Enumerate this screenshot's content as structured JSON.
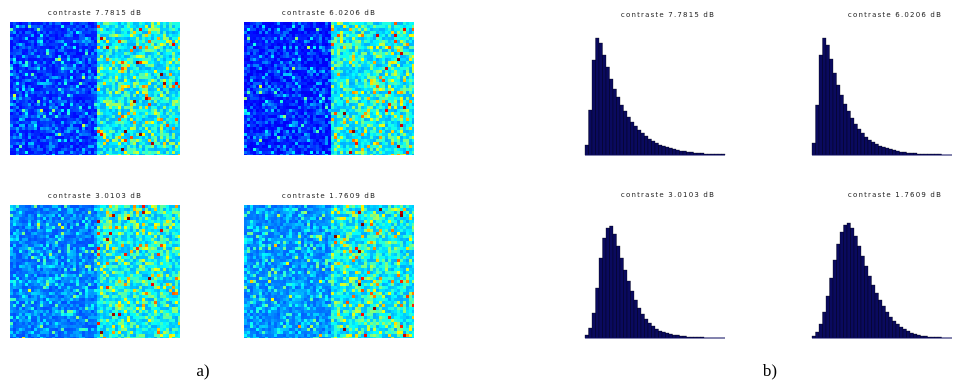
{
  "images": [
    {
      "title": "contraste 7.7815 dB"
    },
    {
      "title": "contraste 6.0206 dB"
    },
    {
      "title": "contraste 3.0103 dB"
    },
    {
      "title": "contraste 1.7609 dB"
    }
  ],
  "histograms": [
    {
      "title": "contraste 7.7815 dB",
      "color": "#0a0a5e",
      "values": [
        10,
        45,
        95,
        117,
        112,
        100,
        88,
        76,
        66,
        58,
        50,
        44,
        38,
        33,
        29,
        25,
        22,
        19,
        16,
        14,
        12,
        10,
        9,
        8,
        7,
        6,
        5,
        4,
        4,
        3,
        3,
        2,
        2,
        2,
        1,
        1,
        1,
        1,
        1,
        1
      ]
    },
    {
      "title": "contraste 6.0206 dB",
      "color": "#0a0a5e",
      "values": [
        12,
        50,
        100,
        117,
        110,
        96,
        82,
        70,
        60,
        51,
        44,
        37,
        31,
        26,
        22,
        18,
        15,
        13,
        11,
        9,
        8,
        7,
        6,
        5,
        4,
        3,
        3,
        2,
        2,
        2,
        1,
        1,
        1,
        1,
        1,
        1,
        1,
        0,
        0,
        0
      ]
    },
    {
      "title": "contraste 3.0103 dB",
      "color": "#0a0a5e",
      "values": [
        3,
        10,
        25,
        50,
        80,
        100,
        110,
        112,
        104,
        92,
        80,
        68,
        57,
        47,
        38,
        30,
        24,
        19,
        15,
        12,
        9,
        7,
        6,
        5,
        4,
        3,
        3,
        2,
        2,
        1,
        1,
        1,
        1,
        1,
        0,
        0,
        0,
        0,
        0,
        0
      ]
    },
    {
      "title": "contraste 1.7609 dB",
      "color": "#0a0a5e",
      "values": [
        2,
        6,
        14,
        26,
        42,
        60,
        78,
        94,
        106,
        113,
        115,
        110,
        102,
        92,
        82,
        72,
        62,
        53,
        45,
        38,
        32,
        26,
        21,
        17,
        14,
        11,
        9,
        7,
        5,
        4,
        3,
        2,
        2,
        1,
        1,
        1,
        1,
        0,
        0,
        0
      ]
    }
  ],
  "captions": {
    "a": "a)",
    "b": "b)"
  }
}
